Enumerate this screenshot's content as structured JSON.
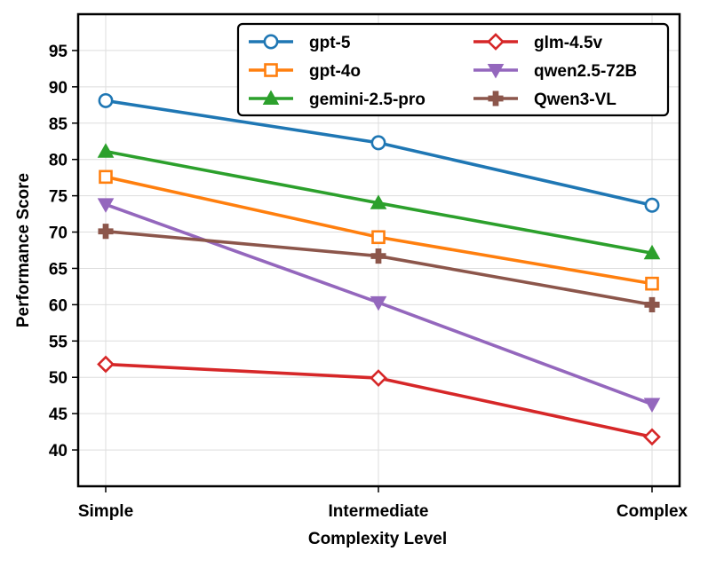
{
  "chart_data": {
    "type": "line",
    "title": "",
    "xlabel": "Complexity Level",
    "ylabel": "Performance Score",
    "categories": [
      "Simple",
      "Intermediate",
      "Complex"
    ],
    "ylim": [
      35,
      100
    ],
    "yticks": [
      40,
      45,
      50,
      55,
      60,
      65,
      70,
      75,
      80,
      85,
      90,
      95
    ],
    "grid": true,
    "legend_position": "top-right",
    "legend_columns": 2,
    "series": [
      {
        "name": "gpt-5",
        "values": [
          88.1,
          82.3,
          73.7
        ],
        "color": "#1f77b4",
        "marker": "circle"
      },
      {
        "name": "gpt-4o",
        "values": [
          77.6,
          69.3,
          62.9
        ],
        "color": "#ff7f0e",
        "marker": "square"
      },
      {
        "name": "gemini-2.5-pro",
        "values": [
          81.1,
          74.0,
          67.1
        ],
        "color": "#2ca02c",
        "marker": "triangle-up"
      },
      {
        "name": "glm-4.5v",
        "values": [
          51.8,
          49.9,
          41.8
        ],
        "color": "#d62728",
        "marker": "diamond"
      },
      {
        "name": "qwen2.5-72B",
        "values": [
          73.8,
          60.3,
          46.3
        ],
        "color": "#9467bd",
        "marker": "triangle-down"
      },
      {
        "name": "Qwen3-VL",
        "values": [
          70.1,
          66.7,
          60.0
        ],
        "color": "#8c564b",
        "marker": "plus"
      }
    ]
  }
}
